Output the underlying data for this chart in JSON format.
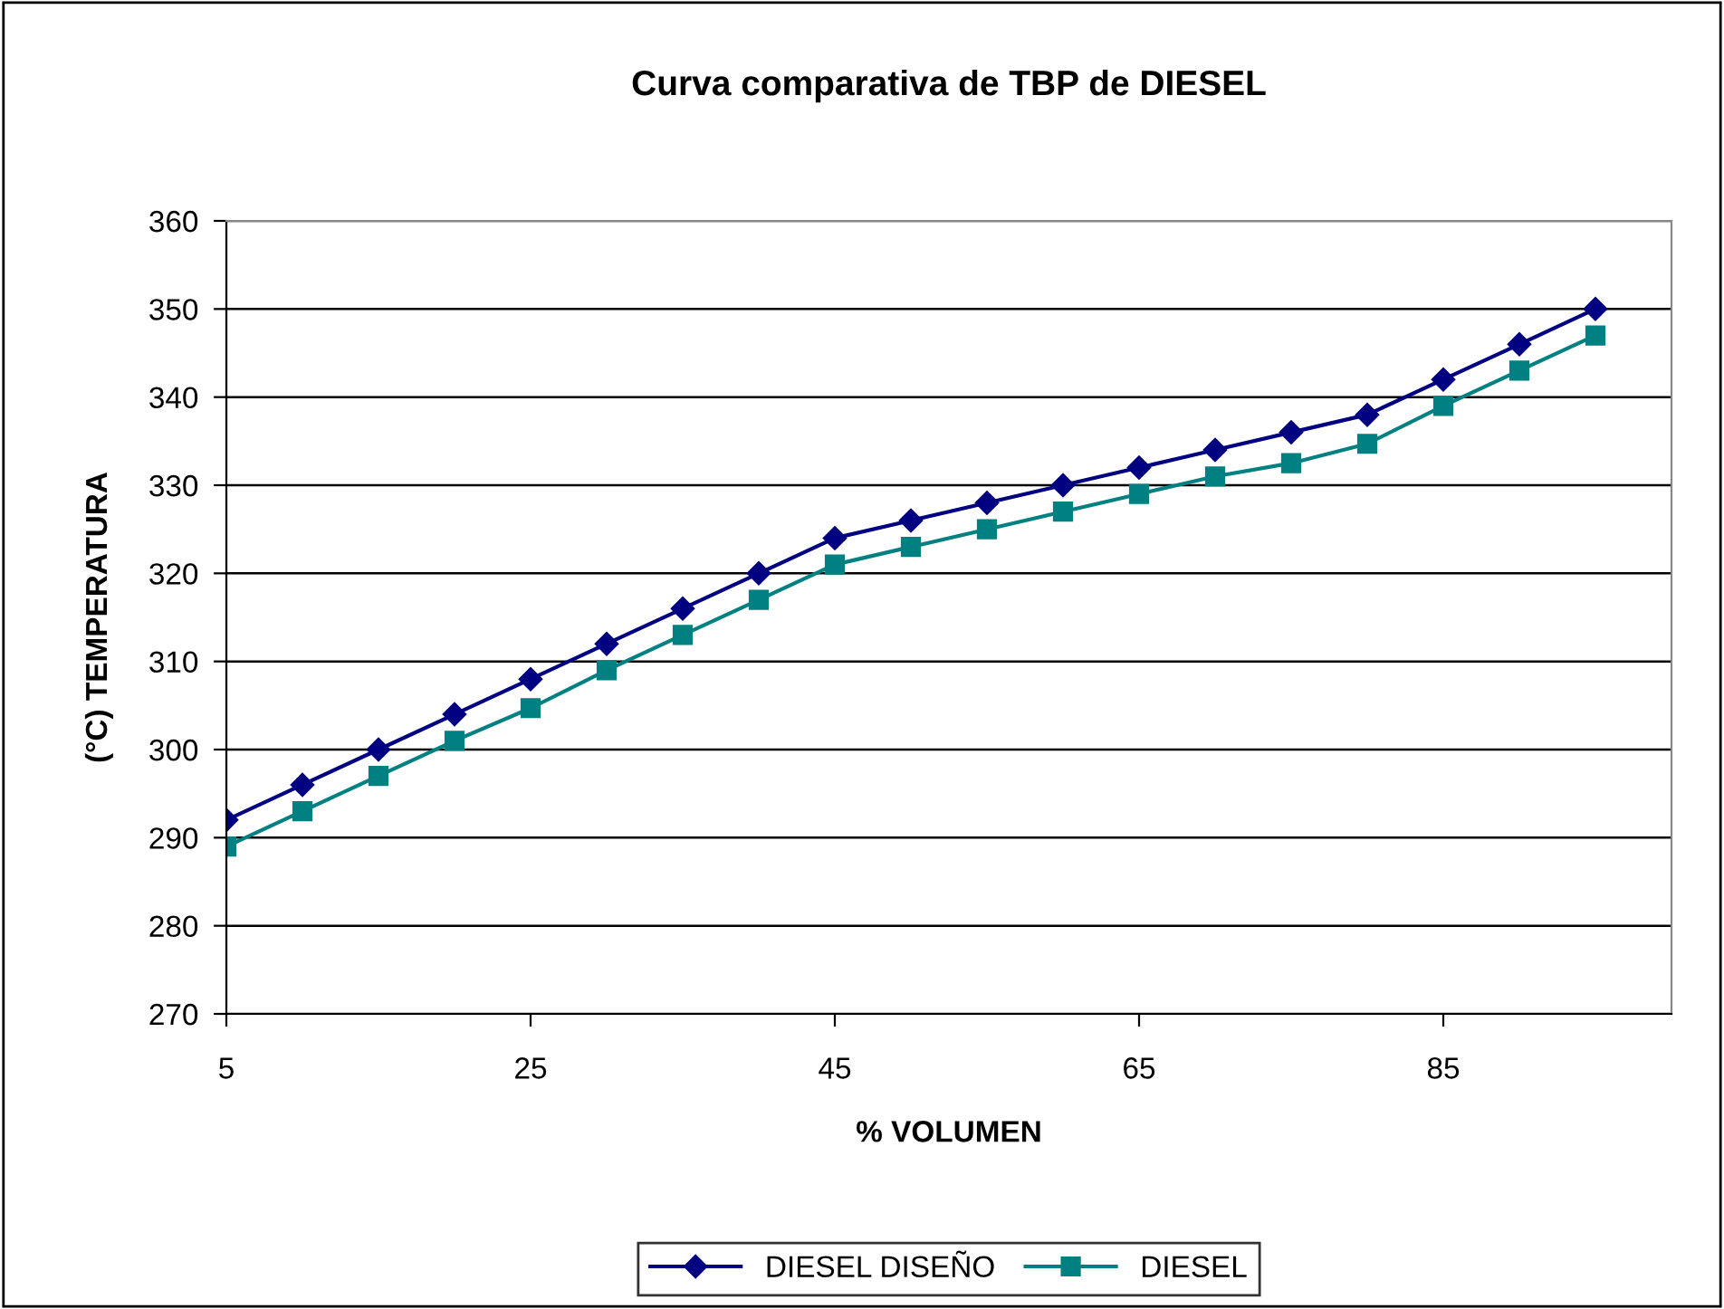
{
  "chart_data": {
    "type": "line",
    "title": "Curva comparativa de TBP de DIESEL",
    "xlabel": "% VOLUMEN",
    "ylabel": "(°C) TEMPERATURA",
    "x": [
      5,
      10,
      15,
      20,
      25,
      30,
      35,
      40,
      45,
      50,
      55,
      60,
      65,
      70,
      75,
      80,
      85,
      90,
      95
    ],
    "series": [
      {
        "name": "DIESEL DISEÑO",
        "color": "#000080",
        "marker": "diamond",
        "values": [
          292,
          296,
          300,
          304,
          308,
          312,
          316,
          320,
          324,
          326,
          328,
          330,
          332,
          334,
          336,
          338,
          342,
          346,
          350
        ]
      },
      {
        "name": "DIESEL",
        "color": "#008080",
        "marker": "square",
        "values": [
          289,
          293,
          297,
          301,
          304.7,
          309,
          313,
          317,
          321,
          323,
          325,
          327,
          329,
          331,
          332.5,
          334.7,
          339,
          343,
          347
        ]
      }
    ],
    "xlim": [
      5,
      100
    ],
    "xticks": [
      5,
      25,
      45,
      65,
      85
    ],
    "ylim": [
      270,
      360
    ],
    "yticks": [
      270,
      280,
      290,
      300,
      310,
      320,
      330,
      340,
      350,
      360
    ],
    "grid": "y",
    "legend": "bottom",
    "line_style": "solid"
  }
}
